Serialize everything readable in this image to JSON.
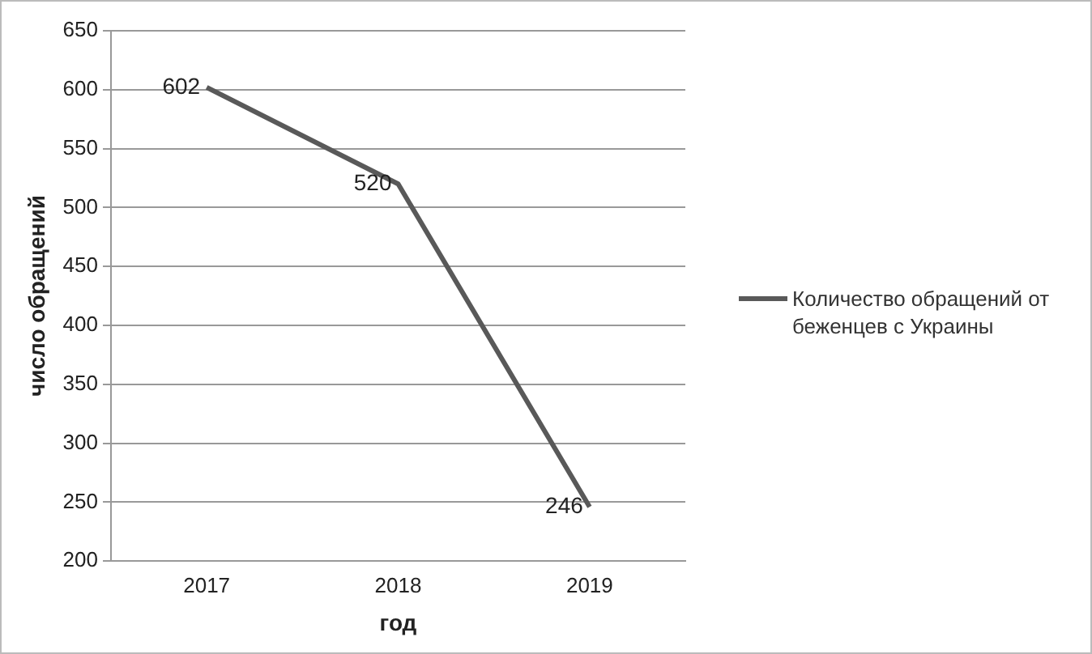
{
  "chart_data": {
    "type": "line",
    "xlabel": "год",
    "ylabel": "число обращений",
    "categories": [
      "2017",
      "2018",
      "2019"
    ],
    "series": [
      {
        "name": "Количество обращений от беженцев с Украины",
        "color": "#595959",
        "values": [
          602,
          520,
          246
        ]
      }
    ],
    "ylim": [
      200,
      650
    ],
    "yticks": [
      200,
      250,
      300,
      350,
      400,
      450,
      500,
      550,
      600,
      650
    ],
    "grid": "y",
    "legend": "right",
    "marker": "none",
    "data_labels": true
  }
}
